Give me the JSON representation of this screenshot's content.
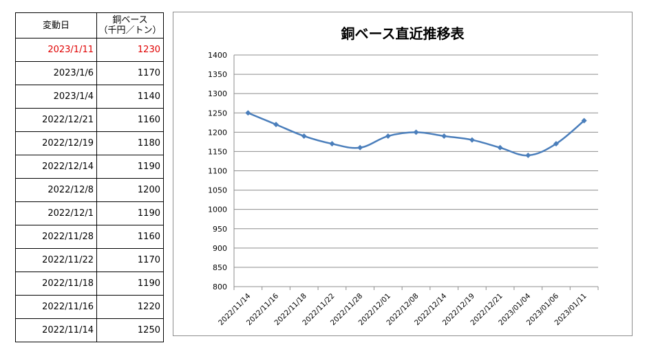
{
  "table": {
    "header_date": "変動日",
    "header_price_line1": "銅ベース",
    "header_price_line2": "（千円／トン）",
    "rows": [
      {
        "date": "2023/1/11",
        "price": "1230"
      },
      {
        "date": "2023/1/6",
        "price": "1170"
      },
      {
        "date": "2023/1/4",
        "price": "1140"
      },
      {
        "date": "2022/12/21",
        "price": "1160"
      },
      {
        "date": "2022/12/19",
        "price": "1180"
      },
      {
        "date": "2022/12/14",
        "price": "1190"
      },
      {
        "date": "2022/12/8",
        "price": "1200"
      },
      {
        "date": "2022/12/1",
        "price": "1190"
      },
      {
        "date": "2022/11/28",
        "price": "1160"
      },
      {
        "date": "2022/11/22",
        "price": "1170"
      },
      {
        "date": "2022/11/18",
        "price": "1190"
      },
      {
        "date": "2022/11/16",
        "price": "1220"
      },
      {
        "date": "2022/11/14",
        "price": "1250"
      }
    ],
    "latest_color": "#e00000"
  },
  "chart_data": {
    "type": "line",
    "title": "銅ベース直近推移表",
    "xlabel": "",
    "ylabel": "",
    "x": [
      "2022/11/14",
      "2022/11/16",
      "2022/11/18",
      "2022/11/22",
      "2022/11/28",
      "2022/12/01",
      "2022/12/08",
      "2022/12/14",
      "2022/12/19",
      "2022/12/21",
      "2023/01/04",
      "2023/01/06",
      "2023/01/11"
    ],
    "series": [
      {
        "name": "",
        "values": [
          1250,
          1220,
          1190,
          1170,
          1160,
          1190,
          1200,
          1190,
          1180,
          1160,
          1140,
          1170,
          1230
        ]
      }
    ],
    "ylim": [
      800,
      1400
    ],
    "yticks": [
      800,
      850,
      900,
      950,
      1000,
      1050,
      1100,
      1150,
      1200,
      1250,
      1300,
      1350,
      1400
    ],
    "grid": true,
    "legend": "none",
    "line_color": "#4a7ebb",
    "gridline_color": "#8c8c8c"
  }
}
